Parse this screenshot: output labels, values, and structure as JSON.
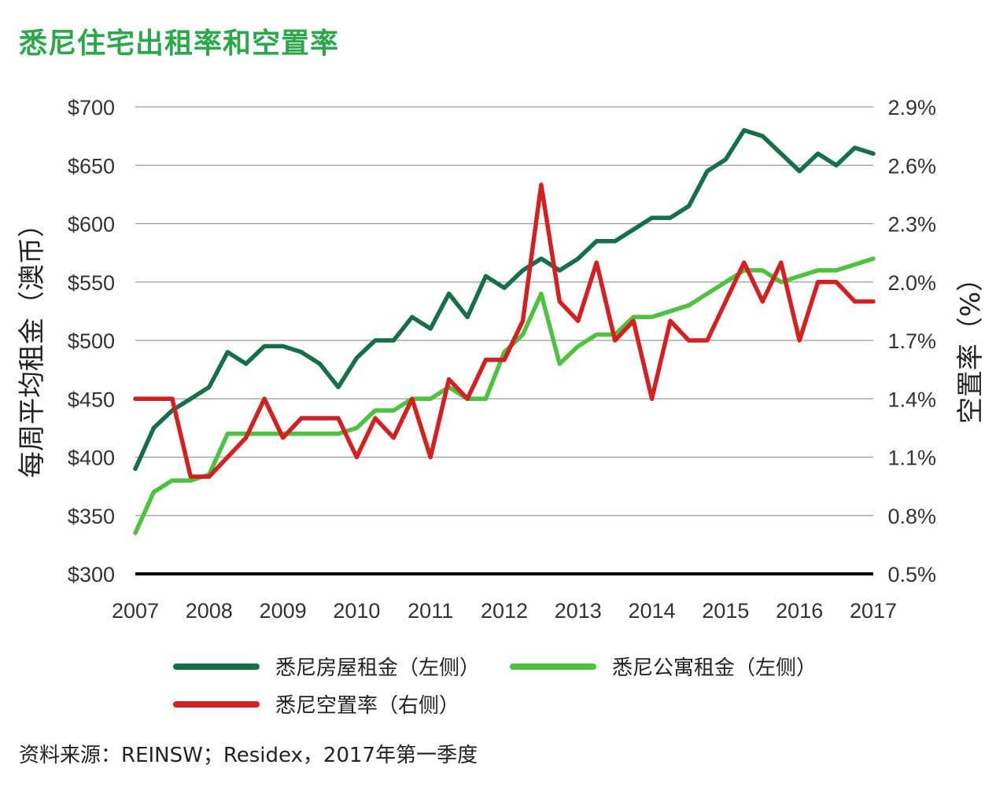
{
  "chart_data": {
    "type": "line",
    "title": "悉尼住宅出租率和空置率",
    "ylabel": "每周平均租金（澳币）",
    "y2label": "空置率（%）",
    "xlabel": "",
    "x_ticks": [
      "2007",
      "2008",
      "2009",
      "2010",
      "2011",
      "2012",
      "2013",
      "2014",
      "2015",
      "2016",
      "2017"
    ],
    "y_ticks": [
      "$700",
      "$650",
      "$600",
      "$550",
      "$500",
      "$450",
      "$400",
      "$350",
      "$300"
    ],
    "y2_ticks": [
      "2.9%",
      "2.6%",
      "2.3%",
      "2.0%",
      "1.7%",
      "1.4%",
      "1.1%",
      "0.8%",
      "0.5%"
    ],
    "ylim": [
      300,
      700
    ],
    "y2lim": [
      0.5,
      2.9
    ],
    "xlim": [
      2007,
      2017
    ],
    "grid": true,
    "legend_position": "bottom",
    "series": [
      {
        "name": "悉尼房屋租金（左侧）",
        "axis": "left",
        "color": "#13704a",
        "x": [
          2007.0,
          2007.25,
          2007.5,
          2007.75,
          2008.0,
          2008.25,
          2008.5,
          2008.75,
          2009.0,
          2009.25,
          2009.5,
          2009.75,
          2010.0,
          2010.25,
          2010.5,
          2010.75,
          2011.0,
          2011.25,
          2011.5,
          2011.75,
          2012.0,
          2012.25,
          2012.5,
          2012.75,
          2013.0,
          2013.25,
          2013.5,
          2013.75,
          2014.0,
          2014.25,
          2014.5,
          2014.75,
          2015.0,
          2015.25,
          2015.5,
          2015.75,
          2016.0,
          2016.25,
          2016.5,
          2016.75,
          2017.0
        ],
        "values": [
          390,
          425,
          440,
          450,
          460,
          490,
          480,
          495,
          495,
          490,
          480,
          460,
          485,
          500,
          500,
          520,
          510,
          540,
          520,
          555,
          545,
          560,
          570,
          560,
          570,
          585,
          585,
          595,
          605,
          605,
          615,
          645,
          655,
          680,
          675,
          660,
          645,
          660,
          650,
          665,
          660
        ]
      },
      {
        "name": "悉尼公寓租金（左侧）",
        "axis": "left",
        "color": "#4cc33d",
        "x": [
          2007.0,
          2007.25,
          2007.5,
          2007.75,
          2008.0,
          2008.25,
          2008.5,
          2008.75,
          2009.0,
          2009.25,
          2009.5,
          2009.75,
          2010.0,
          2010.25,
          2010.5,
          2010.75,
          2011.0,
          2011.25,
          2011.5,
          2011.75,
          2012.0,
          2012.25,
          2012.5,
          2012.75,
          2013.0,
          2013.25,
          2013.5,
          2013.75,
          2014.0,
          2014.25,
          2014.5,
          2014.75,
          2015.0,
          2015.25,
          2015.5,
          2015.75,
          2016.0,
          2016.25,
          2016.5,
          2016.75,
          2017.0
        ],
        "values": [
          335,
          370,
          380,
          380,
          385,
          420,
          420,
          420,
          420,
          420,
          420,
          420,
          425,
          440,
          440,
          450,
          450,
          460,
          450,
          450,
          490,
          505,
          540,
          480,
          495,
          505,
          505,
          520,
          520,
          525,
          530,
          540,
          550,
          560,
          560,
          550,
          555,
          560,
          560,
          565,
          570
        ]
      },
      {
        "name": "悉尼空置率（右侧）",
        "axis": "right",
        "color": "#d42020",
        "x": [
          2007.0,
          2007.25,
          2007.5,
          2007.75,
          2008.0,
          2008.25,
          2008.5,
          2008.75,
          2009.0,
          2009.25,
          2009.5,
          2009.75,
          2010.0,
          2010.25,
          2010.5,
          2010.75,
          2011.0,
          2011.25,
          2011.5,
          2011.75,
          2012.0,
          2012.25,
          2012.5,
          2012.75,
          2013.0,
          2013.25,
          2013.5,
          2013.75,
          2014.0,
          2014.25,
          2014.5,
          2014.75,
          2015.0,
          2015.25,
          2015.5,
          2015.75,
          2016.0,
          2016.25,
          2016.5,
          2016.75,
          2017.0
        ],
        "values": [
          1.4,
          1.4,
          1.4,
          1.0,
          1.0,
          1.1,
          1.2,
          1.4,
          1.2,
          1.3,
          1.3,
          1.3,
          1.1,
          1.3,
          1.2,
          1.4,
          1.1,
          1.5,
          1.4,
          1.6,
          1.6,
          1.8,
          2.5,
          1.9,
          1.8,
          2.1,
          1.7,
          1.8,
          1.4,
          1.8,
          1.7,
          1.7,
          1.9,
          2.1,
          1.9,
          2.1,
          1.7,
          2.0,
          2.0,
          1.9,
          1.9
        ]
      }
    ]
  },
  "source_note": "资料来源：REINSW；Residex，2017年第一季度"
}
